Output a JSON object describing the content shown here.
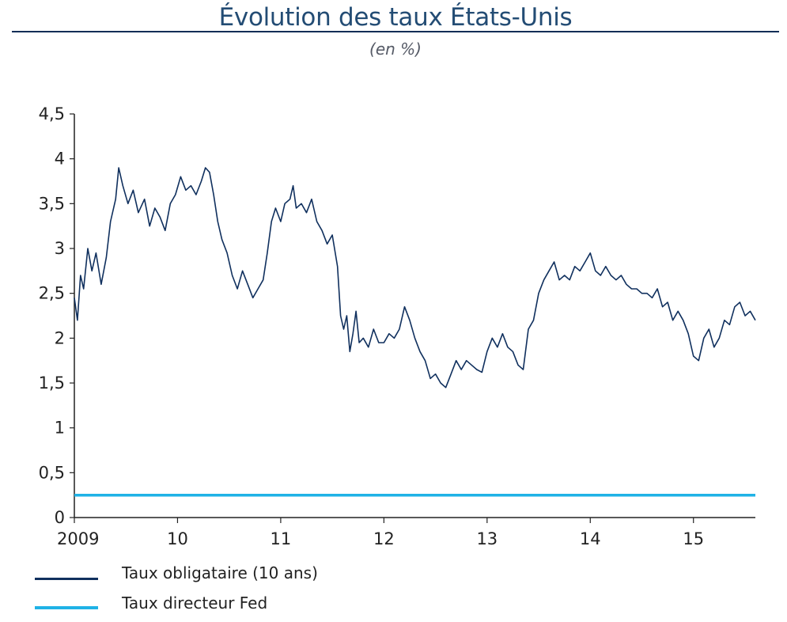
{
  "header": {
    "title": "Évolution des taux États-Unis",
    "subtitle": "(en %)"
  },
  "colors": {
    "bond": "#10305e",
    "fed": "#1fb2e6",
    "axis": "#222222"
  },
  "chart_data": {
    "type": "line",
    "title": "Évolution des taux États-Unis",
    "subtitle": "(en %)",
    "xlabel": "",
    "ylabel": "",
    "ylim": [
      0,
      4.5
    ],
    "xlim": [
      2009.0,
      2015.6
    ],
    "yticks": [
      0,
      0.5,
      1,
      1.5,
      2,
      2.5,
      3,
      3.5,
      4,
      4.5
    ],
    "ytick_labels": [
      "0",
      "0,5",
      "1",
      "1,5",
      "2",
      "2,5",
      "3",
      "3,5",
      "4",
      "4,5"
    ],
    "xticks": [
      2009,
      2010,
      2011,
      2012,
      2013,
      2014,
      2015
    ],
    "xtick_labels": [
      "2009",
      "10",
      "11",
      "12",
      "13",
      "14",
      "15"
    ],
    "grid": false,
    "legend": "bottom-left",
    "series": [
      {
        "name": "Taux obligataire (10 ans)",
        "color": "#10305e",
        "x": [
          2009.0,
          2009.03,
          2009.06,
          2009.09,
          2009.13,
          2009.17,
          2009.21,
          2009.26,
          2009.31,
          2009.35,
          2009.4,
          2009.43,
          2009.47,
          2009.52,
          2009.57,
          2009.62,
          2009.68,
          2009.73,
          2009.78,
          2009.83,
          2009.88,
          2009.93,
          2009.98,
          2010.03,
          2010.08,
          2010.13,
          2010.18,
          2010.23,
          2010.27,
          2010.31,
          2010.35,
          2010.39,
          2010.43,
          2010.48,
          2010.53,
          2010.58,
          2010.63,
          2010.68,
          2010.73,
          2010.78,
          2010.83,
          2010.87,
          2010.91,
          2010.95,
          2011.0,
          2011.04,
          2011.09,
          2011.12,
          2011.15,
          2011.2,
          2011.25,
          2011.3,
          2011.35,
          2011.4,
          2011.45,
          2011.5,
          2011.55,
          2011.58,
          2011.61,
          2011.64,
          2011.67,
          2011.7,
          2011.73,
          2011.76,
          2011.8,
          2011.85,
          2011.9,
          2011.95,
          2012.0,
          2012.05,
          2012.1,
          2012.15,
          2012.2,
          2012.25,
          2012.3,
          2012.35,
          2012.4,
          2012.45,
          2012.5,
          2012.55,
          2012.6,
          2012.65,
          2012.7,
          2012.75,
          2012.8,
          2012.85,
          2012.9,
          2012.95,
          2013.0,
          2013.05,
          2013.1,
          2013.15,
          2013.2,
          2013.25,
          2013.3,
          2013.35,
          2013.4,
          2013.45,
          2013.5,
          2013.55,
          2013.6,
          2013.65,
          2013.7,
          2013.75,
          2013.8,
          2013.85,
          2013.9,
          2013.95,
          2014.0,
          2014.05,
          2014.1,
          2014.15,
          2014.2,
          2014.25,
          2014.3,
          2014.35,
          2014.4,
          2014.45,
          2014.5,
          2014.55,
          2014.6,
          2014.65,
          2014.7,
          2014.75,
          2014.8,
          2014.85,
          2014.9,
          2014.95,
          2015.0,
          2015.05,
          2015.1,
          2015.15,
          2015.2,
          2015.25,
          2015.3,
          2015.35,
          2015.4,
          2015.45,
          2015.5,
          2015.55,
          2015.6
        ],
        "values": [
          2.45,
          2.2,
          2.7,
          2.55,
          3.0,
          2.75,
          2.95,
          2.6,
          2.9,
          3.3,
          3.55,
          3.9,
          3.7,
          3.5,
          3.65,
          3.4,
          3.55,
          3.25,
          3.45,
          3.35,
          3.2,
          3.5,
          3.6,
          3.8,
          3.65,
          3.7,
          3.6,
          3.75,
          3.9,
          3.85,
          3.6,
          3.3,
          3.1,
          2.95,
          2.7,
          2.55,
          2.75,
          2.6,
          2.45,
          2.55,
          2.65,
          2.95,
          3.3,
          3.45,
          3.3,
          3.5,
          3.55,
          3.7,
          3.45,
          3.5,
          3.4,
          3.55,
          3.3,
          3.2,
          3.05,
          3.15,
          2.8,
          2.25,
          2.1,
          2.25,
          1.85,
          2.05,
          2.3,
          1.95,
          2.0,
          1.9,
          2.1,
          1.95,
          1.95,
          2.05,
          2.0,
          2.1,
          2.35,
          2.2,
          2.0,
          1.85,
          1.75,
          1.55,
          1.6,
          1.5,
          1.45,
          1.6,
          1.75,
          1.65,
          1.75,
          1.7,
          1.65,
          1.62,
          1.85,
          2.0,
          1.9,
          2.05,
          1.9,
          1.85,
          1.7,
          1.65,
          2.1,
          2.2,
          2.5,
          2.65,
          2.75,
          2.85,
          2.65,
          2.7,
          2.65,
          2.8,
          2.75,
          2.85,
          2.95,
          2.75,
          2.7,
          2.8,
          2.7,
          2.65,
          2.7,
          2.6,
          2.55,
          2.55,
          2.5,
          2.5,
          2.45,
          2.55,
          2.35,
          2.4,
          2.2,
          2.3,
          2.2,
          2.05,
          1.8,
          1.75,
          2.0,
          2.1,
          1.9,
          2.0,
          2.2,
          2.15,
          2.35,
          2.4,
          2.25,
          2.3,
          2.2
        ]
      },
      {
        "name": "Taux directeur Fed",
        "color": "#1fb2e6",
        "x": [
          2009.0,
          2015.6
        ],
        "values": [
          0.25,
          0.25
        ]
      }
    ]
  },
  "legend_items": [
    {
      "label": "Taux obligataire (10 ans)",
      "color": "#10305e"
    },
    {
      "label": "Taux directeur Fed",
      "color": "#1fb2e6"
    }
  ]
}
